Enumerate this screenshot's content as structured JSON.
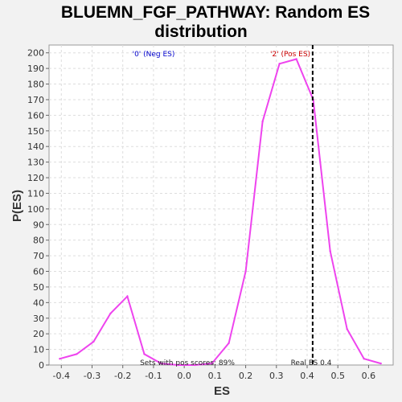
{
  "chart_data": {
    "type": "line",
    "title_line1": "BLUEMN_FGF_PATHWAY: Random ES",
    "title_line2": "distribution",
    "xlabel": "ES",
    "ylabel": "P(ES)",
    "xlim": [
      -0.44,
      0.68
    ],
    "ylim": [
      0,
      205
    ],
    "x_ticks": [
      -0.4,
      -0.3,
      -0.2,
      -0.1,
      0.0,
      0.1,
      0.2,
      0.3,
      0.4,
      0.5,
      0.6
    ],
    "x_tick_labels": [
      "-0.4",
      "-0.3",
      "-0.2",
      "-0.1",
      "0.0",
      "0.1",
      "0.2",
      "0.3",
      "0.4",
      "0.5",
      "0.6"
    ],
    "y_ticks": [
      0,
      10,
      20,
      30,
      40,
      50,
      60,
      70,
      80,
      90,
      100,
      110,
      120,
      130,
      140,
      150,
      160,
      170,
      180,
      190,
      200
    ],
    "grid": true,
    "series": [
      {
        "color": "#ee44ee",
        "x": [
          -0.405,
          -0.35,
          -0.295,
          -0.24,
          -0.185,
          -0.13,
          -0.075,
          -0.02,
          0.035,
          0.09,
          0.145,
          0.2,
          0.255,
          0.31,
          0.365,
          0.42,
          0.475,
          0.53,
          0.585,
          0.64
        ],
        "y": [
          4,
          7,
          15,
          33,
          44,
          7,
          1,
          0,
          0,
          1,
          14,
          60,
          156,
          193,
          196,
          170,
          73,
          23,
          4,
          1
        ]
      }
    ],
    "real_es": 0.418,
    "annotations": {
      "neg_label": "'0' (Neg ES)",
      "pos_label": "'2' (Pos ES)",
      "pos_scores": "Sets with pos scores: 89%",
      "real_es_label": "Real ES 0.4"
    },
    "colors": {
      "neg": "#0000cc",
      "pos": "#cc0000",
      "line": "#ee44ee"
    }
  }
}
